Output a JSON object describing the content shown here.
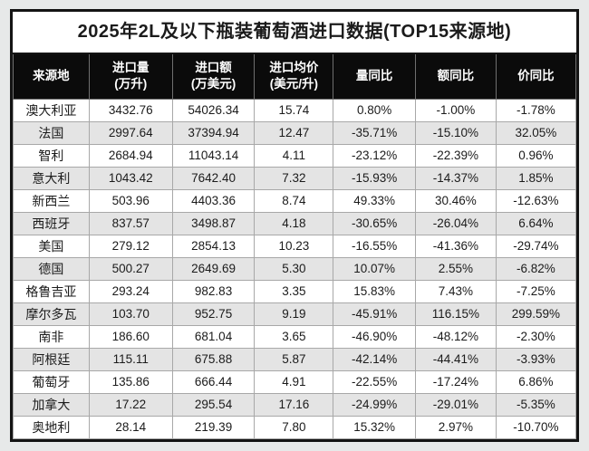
{
  "title": "2025年2L及以下瓶装葡萄酒进口数据(TOP15来源地)",
  "chart_data": {
    "type": "table",
    "title": "2025年2L及以下瓶装葡萄酒进口数据(TOP15来源地)",
    "columns": [
      "来源地",
      "进口量\n(万升)",
      "进口额\n(万美元)",
      "进口均价\n(美元/升)",
      "量同比",
      "额同比",
      "价同比"
    ],
    "col_widths_pct": [
      13.5,
      14.8,
      14.6,
      14.0,
      14.6,
      14.3,
      14.2
    ],
    "rows": [
      [
        "澳大利亚",
        "3432.76",
        "54026.34",
        "15.74",
        "0.80%",
        "-1.00%",
        "-1.78%"
      ],
      [
        "法国",
        "2997.64",
        "37394.94",
        "12.47",
        "-35.71%",
        "-15.10%",
        "32.05%"
      ],
      [
        "智利",
        "2684.94",
        "11043.14",
        "4.11",
        "-23.12%",
        "-22.39%",
        "0.96%"
      ],
      [
        "意大利",
        "1043.42",
        "7642.40",
        "7.32",
        "-15.93%",
        "-14.37%",
        "1.85%"
      ],
      [
        "新西兰",
        "503.96",
        "4403.36",
        "8.74",
        "49.33%",
        "30.46%",
        "-12.63%"
      ],
      [
        "西班牙",
        "837.57",
        "3498.87",
        "4.18",
        "-30.65%",
        "-26.04%",
        "6.64%"
      ],
      [
        "美国",
        "279.12",
        "2854.13",
        "10.23",
        "-16.55%",
        "-41.36%",
        "-29.74%"
      ],
      [
        "德国",
        "500.27",
        "2649.69",
        "5.30",
        "10.07%",
        "2.55%",
        "-6.82%"
      ],
      [
        "格鲁吉亚",
        "293.24",
        "982.83",
        "3.35",
        "15.83%",
        "7.43%",
        "-7.25%"
      ],
      [
        "摩尔多瓦",
        "103.70",
        "952.75",
        "9.19",
        "-45.91%",
        "116.15%",
        "299.59%"
      ],
      [
        "南非",
        "186.60",
        "681.04",
        "3.65",
        "-46.90%",
        "-48.12%",
        "-2.30%"
      ],
      [
        "阿根廷",
        "115.11",
        "675.88",
        "5.87",
        "-42.14%",
        "-44.41%",
        "-3.93%"
      ],
      [
        "葡萄牙",
        "135.86",
        "666.44",
        "4.91",
        "-22.55%",
        "-17.24%",
        "6.86%"
      ],
      [
        "加拿大",
        "17.22",
        "295.54",
        "17.16",
        "-24.99%",
        "-29.01%",
        "-5.35%"
      ],
      [
        "奥地利",
        "28.14",
        "219.39",
        "7.80",
        "15.32%",
        "2.97%",
        "-10.70%"
      ]
    ]
  },
  "colors": {
    "page_bg": "#e7e9e9",
    "title_bg": "#ffffff",
    "header_bg": "#0b0b0b",
    "header_text": "#ffffff",
    "row_bg": "#ffffff",
    "stripe_bg": "#e4e4e4",
    "border_outer": "#141414",
    "border_inner": "#a8a8a8",
    "text": "#1b1b1b"
  }
}
